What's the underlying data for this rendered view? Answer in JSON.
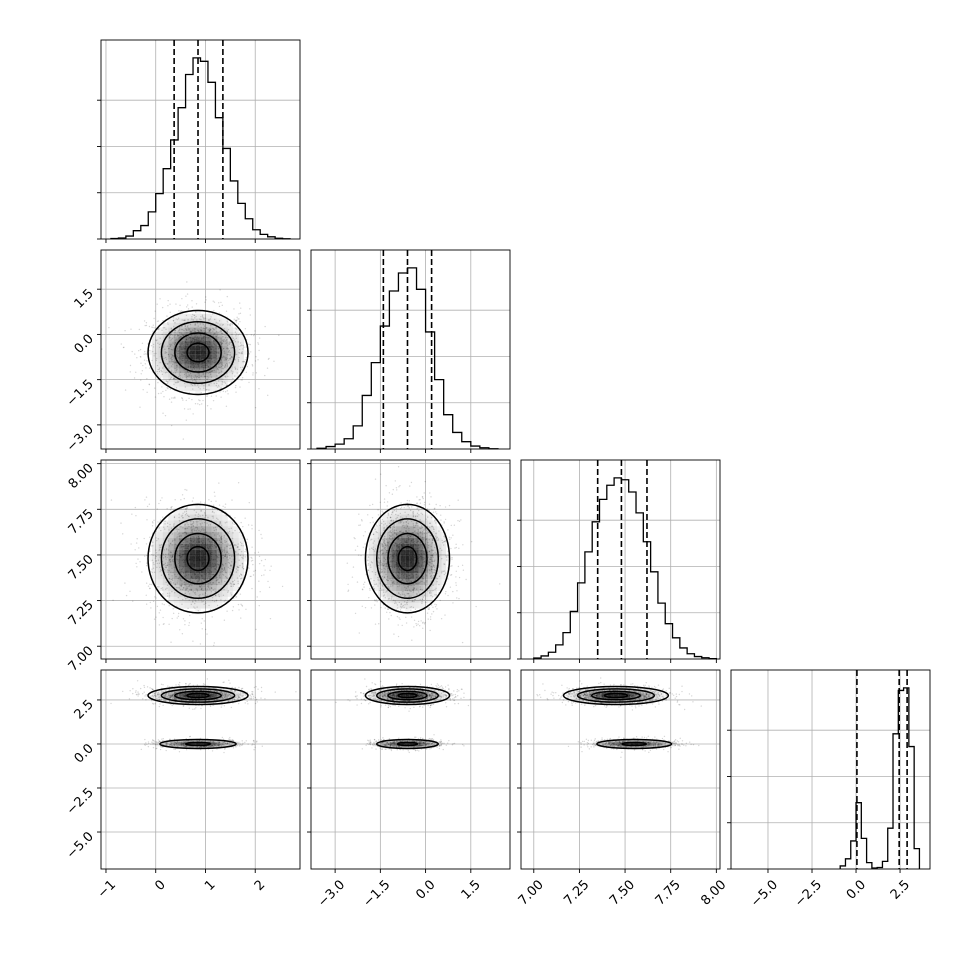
{
  "chart_data": {
    "type": "corner",
    "grid": true,
    "quantile_lines": "dashed",
    "parameters": [
      {
        "name": "",
        "range": [
          -1.1,
          2.9
        ],
        "ticks": [
          -1,
          0,
          1,
          2
        ],
        "tick_labels": [
          "−1",
          "0",
          "1",
          "2"
        ],
        "quantiles": [
          0.37,
          0.85,
          1.35
        ],
        "hist_bins": [
          0.2,
          0.4,
          0.58,
          0.8,
          1.0,
          1.2
        ],
        "hist_edges": [
          -0.9,
          -0.75,
          -0.6,
          -0.45,
          -0.3,
          -0.15,
          0.0,
          0.15,
          0.3,
          0.45,
          0.6,
          0.75,
          0.9,
          1.05,
          1.2,
          1.35,
          1.5,
          1.65,
          1.8,
          1.95,
          2.1,
          2.25,
          2.4,
          2.55,
          2.7
        ],
        "hist_counts": [
          2,
          4,
          12,
          34,
          55,
          111,
          186,
          288,
          406,
          538,
          674,
          742,
          728,
          642,
          497,
          371,
          238,
          146,
          83,
          38,
          19,
          9,
          3,
          1
        ]
      },
      {
        "name": "",
        "range": [
          -3.8,
          2.8
        ],
        "ticks": [
          -3.0,
          -1.5,
          0.0,
          1.5
        ],
        "tick_labels": [
          "−3.0",
          "−1.5",
          "0.0",
          "1.5"
        ],
        "quantiles": [
          -1.4,
          -0.6,
          0.2
        ],
        "hist_bins": [
          0.2,
          0.4,
          0.6,
          0.8
        ],
        "hist_edges": [
          -3.6,
          -3.3,
          -3.0,
          -2.7,
          -2.4,
          -2.1,
          -1.8,
          -1.5,
          -1.2,
          -0.9,
          -0.6,
          -0.3,
          0.0,
          0.3,
          0.6,
          0.9,
          1.2,
          1.5,
          1.8,
          2.1,
          2.4
        ],
        "hist_counts": [
          3,
          10,
          20,
          42,
          95,
          220,
          355,
          505,
          649,
          723,
          744,
          656,
          481,
          285,
          141,
          68,
          30,
          12,
          5,
          1
        ]
      },
      {
        "name": "",
        "range": [
          6.93,
          8.02
        ],
        "ticks": [
          7.0,
          7.25,
          7.5,
          7.75,
          8.0
        ],
        "tick_labels": [
          "7.00",
          "7.25",
          "7.50",
          "7.75",
          "8.00"
        ],
        "quantiles": [
          7.35,
          7.48,
          7.62
        ],
        "hist_bins": [
          0.3,
          0.6,
          0.9
        ],
        "hist_edges": [
          7.0,
          7.04,
          7.08,
          7.12,
          7.16,
          7.2,
          7.24,
          7.28,
          7.32,
          7.36,
          7.4,
          7.44,
          7.48,
          7.52,
          7.56,
          7.6,
          7.64,
          7.68,
          7.72,
          7.76,
          7.8,
          7.84,
          7.88,
          7.92,
          7.96,
          8.0
        ],
        "hist_counts": [
          3,
          10,
          22,
          46,
          86,
          155,
          248,
          349,
          447,
          520,
          566,
          590,
          584,
          544,
          476,
          382,
          284,
          182,
          115,
          69,
          36,
          17,
          8,
          4,
          1
        ]
      },
      {
        "name": "",
        "range": [
          -7.1,
          4.2
        ],
        "ticks": [
          -5.0,
          -2.5,
          0.0,
          2.5
        ],
        "tick_labels": [
          "−5.0",
          "−2.5",
          "0.0",
          "2.5"
        ],
        "quantiles": [
          0.05,
          2.45,
          2.9
        ],
        "hist_bins": [
          0.15,
          0.5,
          0.85
        ],
        "hist_edges": [
          -0.9,
          -0.6,
          -0.3,
          0.0,
          0.3,
          0.6,
          0.9,
          1.2,
          1.5,
          1.8,
          2.1,
          2.4,
          2.7,
          3.0,
          3.3,
          3.6
        ],
        "hist_counts": [
          12,
          40,
          110,
          260,
          120,
          25,
          4,
          6,
          30,
          160,
          530,
          700,
          710,
          480,
          80
        ]
      }
    ],
    "pairs": [
      {
        "x": 0,
        "y": 1,
        "center": [
          0.85,
          -0.6
        ],
        "sigma": [
          0.49,
          0.68
        ],
        "rho": 0
      },
      {
        "x": 0,
        "y": 2,
        "center": [
          0.85,
          7.48
        ],
        "sigma": [
          0.49,
          0.145
        ],
        "rho": 0
      },
      {
        "x": 1,
        "y": 2,
        "center": [
          -0.6,
          7.48
        ],
        "sigma": [
          0.68,
          0.145
        ],
        "rho": 0
      },
      {
        "x": 0,
        "y": 3,
        "center": [
          0.85,
          2.75
        ],
        "sigma": [
          0.49,
          0.25
        ],
        "rho": 0,
        "second": [
          0.85,
          0.0
        ],
        "second_sigma": [
          0.45,
          0.15
        ],
        "second_weight": 0.32
      },
      {
        "x": 1,
        "y": 3,
        "center": [
          -0.6,
          2.75
        ],
        "sigma": [
          0.68,
          0.25
        ],
        "rho": 0,
        "second": [
          -0.6,
          0.0
        ],
        "second_sigma": [
          0.6,
          0.15
        ],
        "second_weight": 0.32
      },
      {
        "x": 2,
        "y": 3,
        "center": [
          7.45,
          2.75
        ],
        "sigma": [
          0.14,
          0.25
        ],
        "rho": 0,
        "second": [
          7.55,
          0.0
        ],
        "second_sigma": [
          0.12,
          0.15
        ],
        "second_weight": 0.32
      }
    ]
  },
  "colors": {
    "axis": "#000000",
    "grid": "#b0b0b0",
    "scatter": "#000000",
    "fill": "#000000"
  }
}
